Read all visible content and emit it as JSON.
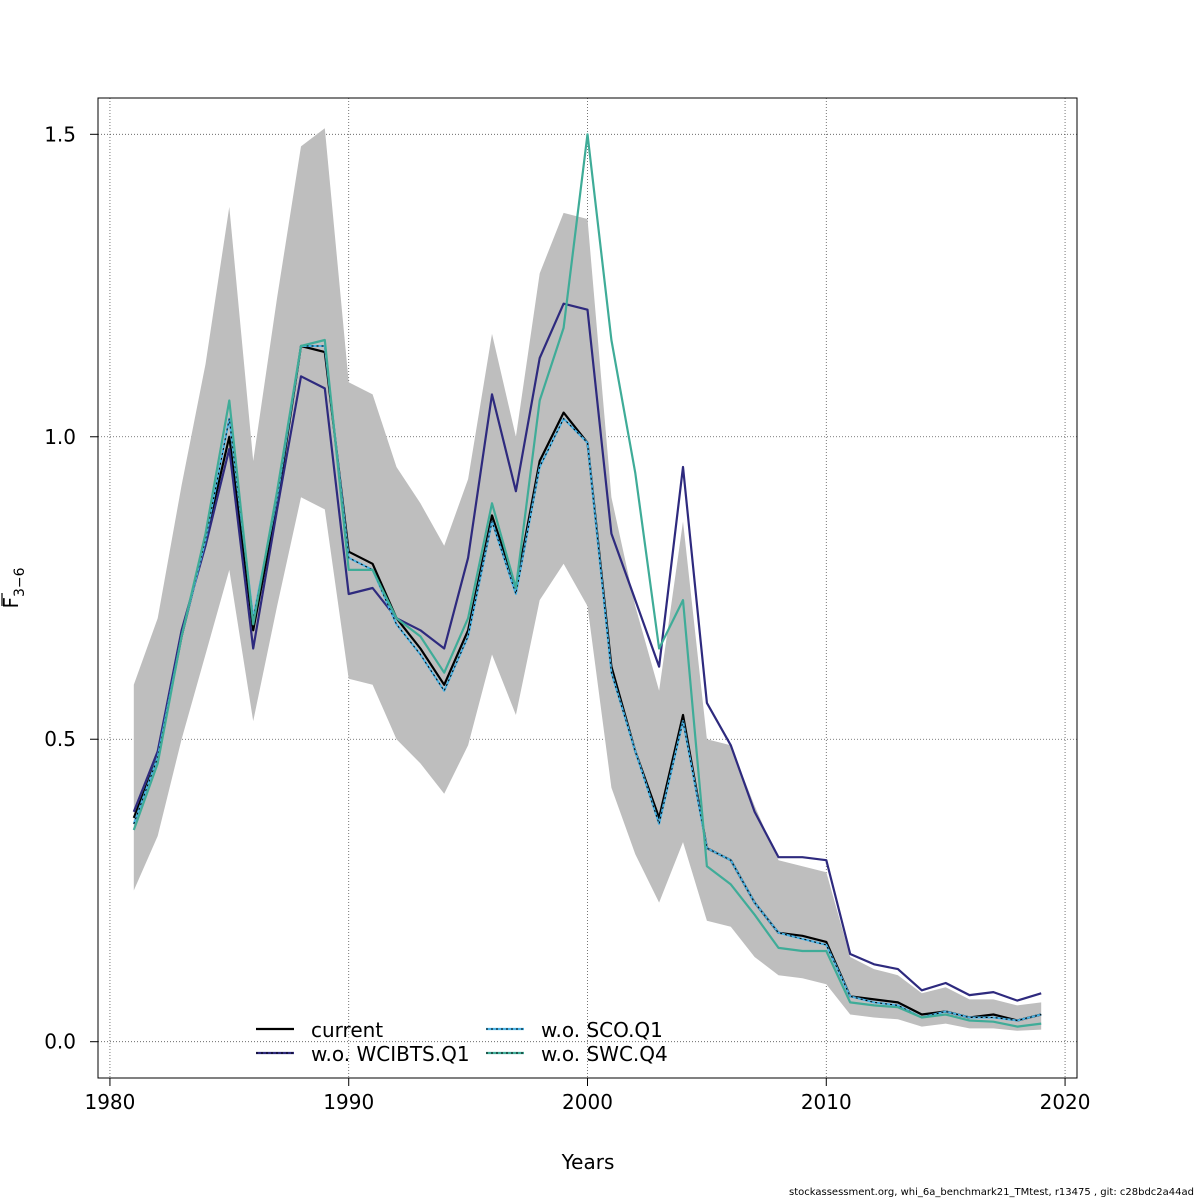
{
  "chart_data": {
    "type": "line",
    "title": "",
    "xlabel": "Years",
    "ylabel_main": "F",
    "ylabel_sub": "3−6",
    "xlim": [
      1979.5,
      2020.5
    ],
    "ylim": [
      -0.06,
      1.56
    ],
    "x_ticks": [
      1980,
      1990,
      2000,
      2010,
      2020
    ],
    "y_ticks": [
      0.0,
      0.5,
      1.0,
      1.5
    ],
    "y_tick_labels": [
      "0.0",
      "0.5",
      "1.0",
      "1.5"
    ],
    "grid": true,
    "legend_position": "bottom",
    "years": [
      1981,
      1982,
      1983,
      1984,
      1985,
      1986,
      1987,
      1988,
      1989,
      1990,
      1991,
      1992,
      1993,
      1994,
      1995,
      1996,
      1997,
      1998,
      1999,
      2000,
      2001,
      2002,
      2003,
      2004,
      2005,
      2006,
      2007,
      2008,
      2009,
      2010,
      2011,
      2012,
      2013,
      2014,
      2015,
      2016,
      2017,
      2018,
      2019
    ],
    "confidence_band": {
      "color": "#bebebe",
      "lower": [
        0.25,
        0.34,
        0.5,
        0.64,
        0.78,
        0.53,
        0.72,
        0.9,
        0.88,
        0.6,
        0.59,
        0.5,
        0.46,
        0.41,
        0.49,
        0.64,
        0.54,
        0.73,
        0.79,
        0.72,
        0.42,
        0.31,
        0.23,
        0.33,
        0.2,
        0.19,
        0.14,
        0.11,
        0.105,
        0.095,
        0.045,
        0.04,
        0.037,
        0.025,
        0.03,
        0.022,
        0.022,
        0.018,
        0.02
      ],
      "upper": [
        0.59,
        0.7,
        0.92,
        1.12,
        1.38,
        0.96,
        1.23,
        1.48,
        1.51,
        1.09,
        1.07,
        0.95,
        0.89,
        0.82,
        0.93,
        1.17,
        1.0,
        1.27,
        1.37,
        1.36,
        0.9,
        0.72,
        0.58,
        0.86,
        0.5,
        0.49,
        0.39,
        0.3,
        0.29,
        0.28,
        0.14,
        0.12,
        0.11,
        0.08,
        0.09,
        0.07,
        0.07,
        0.06,
        0.065
      ]
    },
    "series": [
      {
        "name": "current",
        "color": "#000000",
        "dashed": false,
        "values": [
          0.37,
          0.47,
          0.67,
          0.83,
          1.0,
          0.68,
          0.89,
          1.15,
          1.14,
          0.81,
          0.79,
          0.7,
          0.65,
          0.59,
          0.68,
          0.87,
          0.75,
          0.96,
          1.04,
          0.99,
          0.62,
          0.48,
          0.37,
          0.54,
          0.32,
          0.3,
          0.23,
          0.18,
          0.175,
          0.165,
          0.075,
          0.07,
          0.065,
          0.045,
          0.05,
          0.04,
          0.045,
          0.035,
          0.045
        ]
      },
      {
        "name": "w.o. WCIBTS.Q1",
        "color": "#2e2a7e",
        "dashed": false,
        "values": [
          0.38,
          0.48,
          0.68,
          0.82,
          0.98,
          0.65,
          0.88,
          1.1,
          1.08,
          0.74,
          0.75,
          0.7,
          0.68,
          0.65,
          0.8,
          1.07,
          0.91,
          1.13,
          1.22,
          1.21,
          0.84,
          0.73,
          0.62,
          0.95,
          0.56,
          0.49,
          0.38,
          0.305,
          0.305,
          0.3,
          0.145,
          0.128,
          0.12,
          0.085,
          0.097,
          0.077,
          0.082,
          0.068,
          0.08
        ]
      },
      {
        "name": "w.o. SCO.Q1",
        "color": "#49b3e6",
        "dashed": true,
        "values": [
          0.36,
          0.47,
          0.67,
          0.83,
          1.03,
          0.7,
          0.9,
          1.15,
          1.15,
          0.8,
          0.78,
          0.69,
          0.64,
          0.58,
          0.67,
          0.86,
          0.74,
          0.95,
          1.03,
          0.99,
          0.61,
          0.48,
          0.36,
          0.53,
          0.32,
          0.3,
          0.23,
          0.18,
          0.17,
          0.16,
          0.075,
          0.065,
          0.06,
          0.04,
          0.05,
          0.04,
          0.04,
          0.035,
          0.045
        ]
      },
      {
        "name": "w.o. SWC.Q4",
        "color": "#3fac98",
        "dashed": false,
        "values": [
          0.35,
          0.46,
          0.67,
          0.84,
          1.06,
          0.69,
          0.91,
          1.15,
          1.16,
          0.78,
          0.78,
          0.7,
          0.67,
          0.61,
          0.7,
          0.89,
          0.75,
          1.06,
          1.18,
          1.5,
          1.16,
          0.94,
          0.65,
          0.73,
          0.29,
          0.26,
          0.21,
          0.155,
          0.15,
          0.15,
          0.065,
          0.06,
          0.057,
          0.04,
          0.045,
          0.035,
          0.033,
          0.025,
          0.03
        ]
      }
    ]
  },
  "footer_text": "stockassessment.org, whi_6a_benchmark21_TMtest, r13475 , git: c28bdc2a44ad"
}
